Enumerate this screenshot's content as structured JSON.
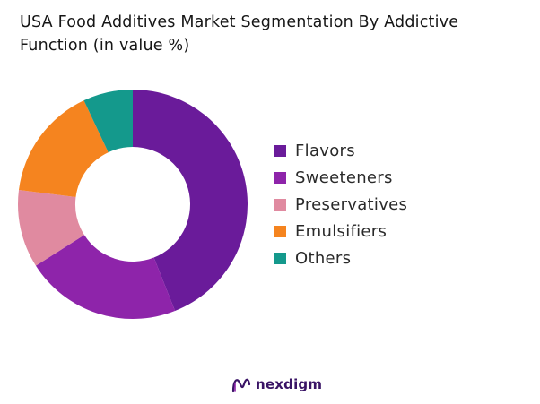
{
  "title_line1": "USA Food Additives Market Segmentation By Addictive",
  "title_line2": "Function (in value %)",
  "chart_data": {
    "type": "pie",
    "donut": true,
    "categories": [
      "Flavors",
      "Sweeteners",
      "Preservatives",
      "Emulsifiers",
      "Others"
    ],
    "values": [
      44,
      22,
      11,
      16,
      7
    ],
    "colors": [
      "#6a1b9a",
      "#8e24aa",
      "#e08aa0",
      "#f5841f",
      "#14998c"
    ],
    "legend_position": "right"
  },
  "logo": {
    "text": "nexdigm",
    "icon": "nexdigm-logo-icon",
    "color": "#3a1466"
  }
}
